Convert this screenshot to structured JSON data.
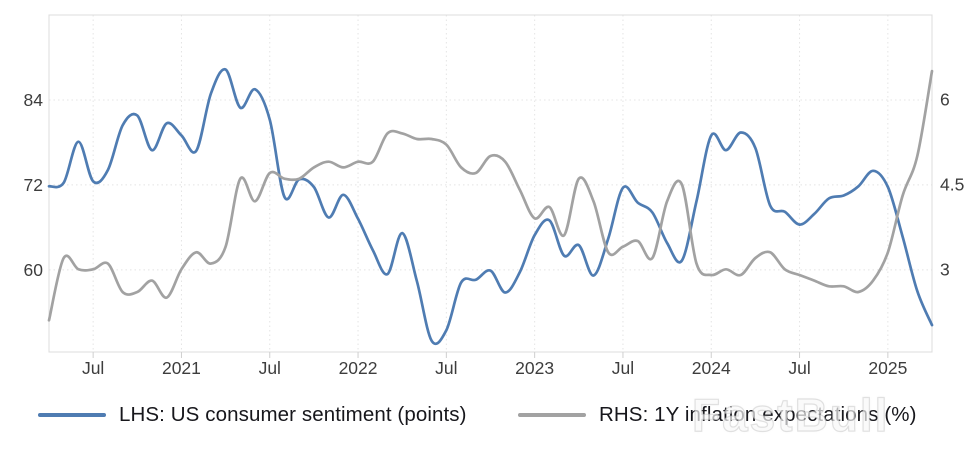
{
  "watermark": {
    "text": "FastBull"
  },
  "colors": {
    "sentiment_line": "#4f7cb2",
    "inflation_line": "#a2a2a2",
    "grid": "#e4e4e4",
    "plot_border": "#dcdcdc",
    "tick_mark": "#cfcfcf",
    "axis_text": "#3d3d3d",
    "legend_text": "#17171c",
    "background": "#ffffff"
  },
  "legend": {
    "items": [
      {
        "label": "LHS: US consumer sentiment (points)",
        "series": "sentiment"
      },
      {
        "label": "RHS: 1Y inflation expectations (%)",
        "series": "inflation"
      }
    ],
    "position": "bottom"
  },
  "chart_data": {
    "type": "line",
    "title": "",
    "grid": true,
    "smooth": true,
    "x_unit": "month",
    "x": [
      "2020-04",
      "2020-05",
      "2020-06",
      "2020-07",
      "2020-08",
      "2020-09",
      "2020-10",
      "2020-11",
      "2020-12",
      "2021-01",
      "2021-02",
      "2021-03",
      "2021-04",
      "2021-05",
      "2021-06",
      "2021-07",
      "2021-08",
      "2021-09",
      "2021-10",
      "2021-11",
      "2021-12",
      "2022-01",
      "2022-02",
      "2022-03",
      "2022-04",
      "2022-05",
      "2022-06",
      "2022-07",
      "2022-08",
      "2022-09",
      "2022-10",
      "2022-11",
      "2022-12",
      "2023-01",
      "2023-02",
      "2023-03",
      "2023-04",
      "2023-05",
      "2023-06",
      "2023-07",
      "2023-08",
      "2023-09",
      "2023-10",
      "2023-11",
      "2023-12",
      "2024-01",
      "2024-02",
      "2024-03",
      "2024-04",
      "2024-05",
      "2024-06",
      "2024-07",
      "2024-08",
      "2024-09",
      "2024-10",
      "2024-11",
      "2024-12",
      "2025-01",
      "2025-02",
      "2025-03",
      "2025-04"
    ],
    "x_tick_labels": [
      "Jul",
      "2021",
      "Jul",
      "2022",
      "Jul",
      "2023",
      "Jul",
      "2024",
      "Jul",
      "2025"
    ],
    "x_tick_indices": [
      3,
      9,
      15,
      21,
      27,
      33,
      39,
      45,
      51,
      57
    ],
    "series": [
      {
        "name": "LHS: US consumer sentiment (points)",
        "axis": "left",
        "color_key": "sentiment_line",
        "values": [
          71.8,
          72.3,
          78.1,
          72.5,
          74.1,
          80.4,
          81.8,
          76.9,
          80.7,
          79.0,
          76.8,
          84.9,
          88.3,
          82.9,
          85.5,
          81.2,
          70.3,
          72.8,
          71.7,
          67.4,
          70.6,
          67.2,
          62.8,
          59.4,
          65.2,
          58.4,
          50.0,
          51.5,
          58.2,
          58.6,
          59.9,
          56.8,
          59.7,
          64.9,
          67.0,
          62.0,
          63.5,
          59.2,
          64.4,
          71.6,
          69.5,
          68.1,
          63.8,
          61.3,
          69.7,
          79.0,
          76.9,
          79.4,
          77.2,
          69.1,
          68.2,
          66.4,
          67.9,
          70.1,
          70.5,
          71.8,
          74.0,
          71.7,
          64.7,
          57.0,
          52.2
        ]
      },
      {
        "name": "RHS: 1Y inflation expectations (%)",
        "axis": "right",
        "color_key": "inflation_line",
        "values": [
          2.1,
          3.2,
          3.0,
          3.0,
          3.1,
          2.6,
          2.6,
          2.8,
          2.5,
          3.0,
          3.3,
          3.1,
          3.4,
          4.6,
          4.2,
          4.7,
          4.6,
          4.6,
          4.8,
          4.9,
          4.8,
          4.9,
          4.9,
          5.4,
          5.4,
          5.3,
          5.3,
          5.2,
          4.8,
          4.7,
          5.0,
          4.9,
          4.4,
          3.9,
          4.1,
          3.6,
          4.6,
          4.2,
          3.3,
          3.4,
          3.5,
          3.2,
          4.2,
          4.5,
          3.1,
          2.9,
          3.0,
          2.9,
          3.2,
          3.3,
          3.0,
          2.9,
          2.8,
          2.7,
          2.7,
          2.6,
          2.8,
          3.3,
          4.3,
          5.0,
          6.5
        ]
      }
    ],
    "left_axis": {
      "ticks": [
        84,
        72,
        60
      ],
      "tick_labels": [
        "84",
        "72",
        "60"
      ],
      "ylim": [
        48.4,
        96.0
      ]
    },
    "right_axis": {
      "ticks": [
        6,
        4.5,
        3
      ],
      "tick_labels": [
        "6",
        "4.5",
        "3"
      ],
      "ylim": [
        1.54,
        7.49
      ]
    }
  }
}
